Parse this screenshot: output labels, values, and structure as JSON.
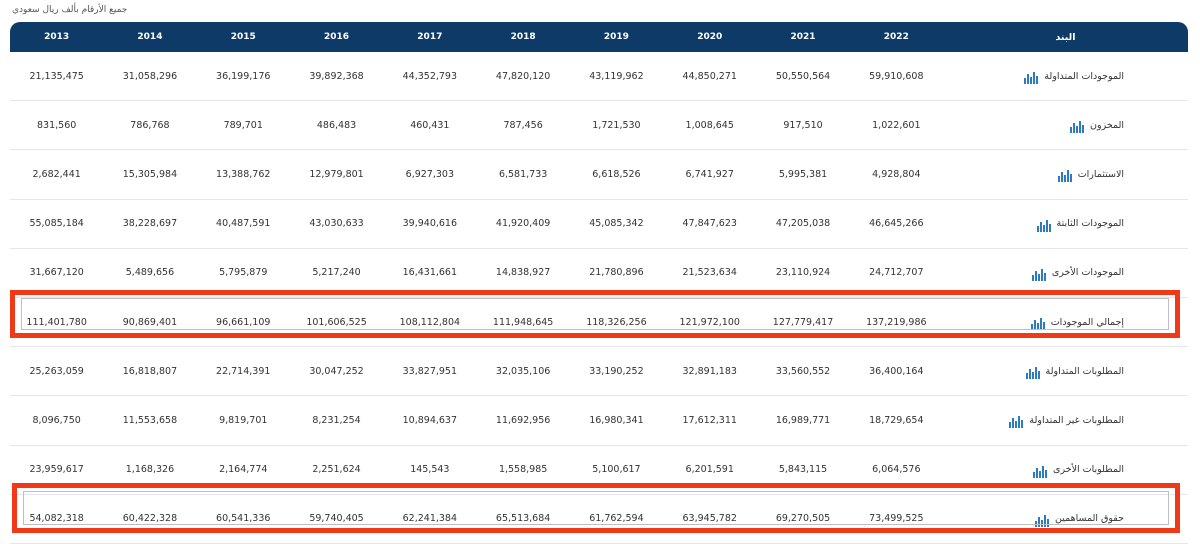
{
  "note": "جميع الأرقام بألف ريال سعودي",
  "header": {
    "years": [
      "2013",
      "2014",
      "2015",
      "2016",
      "2017",
      "2018",
      "2019",
      "2020",
      "2021",
      "2022"
    ],
    "item": "البند"
  },
  "rows": [
    {
      "label": "الموجودات المتداولة",
      "values": [
        "21,135,475",
        "31,058,296",
        "36,199,176",
        "39,892,368",
        "44,352,793",
        "47,820,120",
        "43,119,962",
        "44,850,271",
        "50,550,564",
        "59,910,608"
      ]
    },
    {
      "label": "المخزون",
      "values": [
        "831,560",
        "786,768",
        "789,701",
        "486,483",
        "460,431",
        "787,456",
        "1,721,530",
        "1,008,645",
        "917,510",
        "1,022,601"
      ]
    },
    {
      "label": "الاستثمارات",
      "values": [
        "2,682,441",
        "15,305,984",
        "13,388,762",
        "12,979,801",
        "6,927,303",
        "6,581,733",
        "6,618,526",
        "6,741,927",
        "5,995,381",
        "4,928,804"
      ]
    },
    {
      "label": "الموجودات الثابتة",
      "values": [
        "55,085,184",
        "38,228,697",
        "40,487,591",
        "43,030,633",
        "39,940,616",
        "41,920,409",
        "45,085,342",
        "47,847,623",
        "47,205,038",
        "46,645,266"
      ]
    },
    {
      "label": "الموجودات الأخرى",
      "values": [
        "31,667,120",
        "5,489,656",
        "5,795,879",
        "5,217,240",
        "16,431,661",
        "14,838,927",
        "21,780,896",
        "21,523,634",
        "23,110,924",
        "24,712,707"
      ]
    },
    {
      "label": "إجمالي الموجودات",
      "values": [
        "111,401,780",
        "90,869,401",
        "96,661,109",
        "101,606,525",
        "108,112,804",
        "111,948,645",
        "118,326,256",
        "121,972,100",
        "127,779,417",
        "137,219,986"
      ]
    },
    {
      "label": "المطلوبات المتداولة",
      "values": [
        "25,263,059",
        "16,818,807",
        "22,714,391",
        "30,047,252",
        "33,827,951",
        "32,035,106",
        "33,190,252",
        "32,891,183",
        "33,560,552",
        "36,400,164"
      ]
    },
    {
      "label": "المطلوبات غير المتداولة",
      "values": [
        "8,096,750",
        "11,553,658",
        "9,819,701",
        "8,231,254",
        "10,894,637",
        "11,692,956",
        "16,980,341",
        "17,612,311",
        "16,989,771",
        "18,729,654"
      ]
    },
    {
      "label": "المطلوبات الأخرى",
      "values": [
        "23,959,617",
        "1,168,326",
        "2,164,774",
        "2,251,624",
        "145,543",
        "1,558,985",
        "5,100,617",
        "6,201,591",
        "5,843,115",
        "6,064,576"
      ]
    },
    {
      "label": "حقوق المساهمين",
      "values": [
        "54,082,318",
        "60,422,328",
        "60,541,336",
        "59,740,405",
        "62,241,384",
        "65,513,684",
        "61,762,594",
        "63,945,782",
        "69,270,505",
        "73,499,525"
      ]
    }
  ],
  "highlight_color": "#f03a17",
  "header_color": "#0e3a68",
  "icon_color": "#2a7bc2",
  "icon": "bar-chart-icon"
}
